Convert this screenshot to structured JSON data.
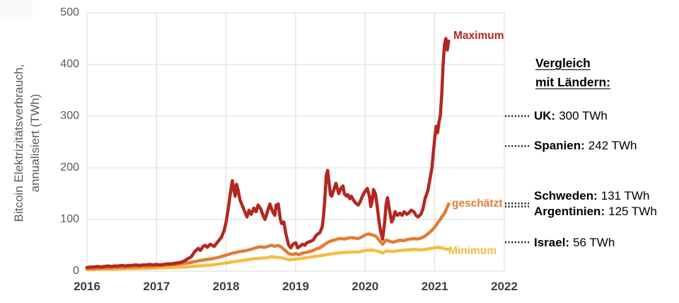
{
  "chart_data": {
    "type": "line",
    "title": "",
    "ylabel_lines": [
      "Bitcoin Elektrizitätsverbrauch,",
      "annualisiert (TWh)"
    ],
    "xlim": [
      2016,
      2022
    ],
    "ylim": [
      0,
      500
    ],
    "x_ticks": [
      2016,
      2017,
      2018,
      2019,
      2020,
      2021,
      2022
    ],
    "y_ticks": [
      0,
      100,
      200,
      300,
      400,
      500
    ],
    "grid": "both",
    "grid_color": "#d9d9d9",
    "axis_line_color": "#bfbfbf",
    "leader_color": "#1a1a1a",
    "series": [
      {
        "name": "Maximum",
        "color": "#b3271e",
        "points": [
          [
            2016.0,
            7
          ],
          [
            2016.05,
            8
          ],
          [
            2016.1,
            8
          ],
          [
            2016.15,
            9
          ],
          [
            2016.2,
            8
          ],
          [
            2016.25,
            9
          ],
          [
            2016.3,
            10
          ],
          [
            2016.35,
            9
          ],
          [
            2016.4,
            10
          ],
          [
            2016.45,
            10
          ],
          [
            2016.5,
            11
          ],
          [
            2016.55,
            10
          ],
          [
            2016.6,
            11
          ],
          [
            2016.65,
            11
          ],
          [
            2016.7,
            12
          ],
          [
            2016.75,
            11
          ],
          [
            2016.8,
            12
          ],
          [
            2016.85,
            12
          ],
          [
            2016.9,
            13
          ],
          [
            2016.95,
            12
          ],
          [
            2017.0,
            13
          ],
          [
            2017.05,
            12
          ],
          [
            2017.1,
            13
          ],
          [
            2017.15,
            14
          ],
          [
            2017.2,
            14
          ],
          [
            2017.25,
            15
          ],
          [
            2017.3,
            16
          ],
          [
            2017.35,
            17
          ],
          [
            2017.4,
            20
          ],
          [
            2017.45,
            24
          ],
          [
            2017.5,
            28
          ],
          [
            2017.55,
            38
          ],
          [
            2017.6,
            44
          ],
          [
            2017.63,
            40
          ],
          [
            2017.67,
            48
          ],
          [
            2017.7,
            50
          ],
          [
            2017.73,
            46
          ],
          [
            2017.77,
            52
          ],
          [
            2017.8,
            50
          ],
          [
            2017.83,
            48
          ],
          [
            2017.87,
            55
          ],
          [
            2017.9,
            60
          ],
          [
            2017.93,
            65
          ],
          [
            2017.97,
            78
          ],
          [
            2018.0,
            95
          ],
          [
            2018.03,
            120
          ],
          [
            2018.06,
            150
          ],
          [
            2018.09,
            175
          ],
          [
            2018.11,
            158
          ],
          [
            2018.13,
            145
          ],
          [
            2018.15,
            168
          ],
          [
            2018.17,
            158
          ],
          [
            2018.2,
            138
          ],
          [
            2018.23,
            128
          ],
          [
            2018.26,
            118
          ],
          [
            2018.3,
            105
          ],
          [
            2018.33,
            118
          ],
          [
            2018.36,
            110
          ],
          [
            2018.4,
            122
          ],
          [
            2018.43,
            115
          ],
          [
            2018.46,
            128
          ],
          [
            2018.5,
            120
          ],
          [
            2018.53,
            108
          ],
          [
            2018.56,
            100
          ],
          [
            2018.6,
            118
          ],
          [
            2018.63,
            130
          ],
          [
            2018.66,
            118
          ],
          [
            2018.7,
            108
          ],
          [
            2018.72,
            128
          ],
          [
            2018.75,
            130
          ],
          [
            2018.78,
            100
          ],
          [
            2018.8,
            92
          ],
          [
            2018.83,
            95
          ],
          [
            2018.86,
            72
          ],
          [
            2018.9,
            50
          ],
          [
            2018.93,
            45
          ],
          [
            2018.96,
            52
          ],
          [
            2019.0,
            55
          ],
          [
            2019.03,
            45
          ],
          [
            2019.06,
            48
          ],
          [
            2019.1,
            52
          ],
          [
            2019.13,
            50
          ],
          [
            2019.16,
            55
          ],
          [
            2019.2,
            57
          ],
          [
            2019.25,
            60
          ],
          [
            2019.3,
            70
          ],
          [
            2019.35,
            75
          ],
          [
            2019.38,
            85
          ],
          [
            2019.4,
            105
          ],
          [
            2019.42,
            140
          ],
          [
            2019.44,
            185
          ],
          [
            2019.46,
            195
          ],
          [
            2019.48,
            172
          ],
          [
            2019.5,
            148
          ],
          [
            2019.52,
            145
          ],
          [
            2019.55,
            158
          ],
          [
            2019.58,
            170
          ],
          [
            2019.6,
            160
          ],
          [
            2019.62,
            150
          ],
          [
            2019.65,
            160
          ],
          [
            2019.68,
            165
          ],
          [
            2019.7,
            150
          ],
          [
            2019.73,
            145
          ],
          [
            2019.75,
            148
          ],
          [
            2019.78,
            140
          ],
          [
            2019.8,
            145
          ],
          [
            2019.83,
            138
          ],
          [
            2019.86,
            132
          ],
          [
            2019.9,
            128
          ],
          [
            2019.93,
            135
          ],
          [
            2019.96,
            145
          ],
          [
            2020.0,
            155
          ],
          [
            2020.03,
            160
          ],
          [
            2020.06,
            145
          ],
          [
            2020.08,
            125
          ],
          [
            2020.1,
            135
          ],
          [
            2020.12,
            158
          ],
          [
            2020.15,
            148
          ],
          [
            2020.18,
            118
          ],
          [
            2020.2,
            95
          ],
          [
            2020.22,
            78
          ],
          [
            2020.25,
            62
          ],
          [
            2020.28,
            95
          ],
          [
            2020.3,
            128
          ],
          [
            2020.32,
            142
          ],
          [
            2020.35,
            118
          ],
          [
            2020.38,
            95
          ],
          [
            2020.4,
            100
          ],
          [
            2020.43,
            115
          ],
          [
            2020.46,
            108
          ],
          [
            2020.5,
            112
          ],
          [
            2020.53,
            108
          ],
          [
            2020.56,
            115
          ],
          [
            2020.6,
            110
          ],
          [
            2020.63,
            113
          ],
          [
            2020.66,
            118
          ],
          [
            2020.7,
            115
          ],
          [
            2020.73,
            108
          ],
          [
            2020.76,
            105
          ],
          [
            2020.8,
            110
          ],
          [
            2020.83,
            120
          ],
          [
            2020.86,
            140
          ],
          [
            2020.9,
            155
          ],
          [
            2020.92,
            170
          ],
          [
            2020.94,
            185
          ],
          [
            2020.96,
            200
          ],
          [
            2020.98,
            230
          ],
          [
            2021.0,
            258
          ],
          [
            2021.02,
            280
          ],
          [
            2021.04,
            268
          ],
          [
            2021.06,
            288
          ],
          [
            2021.08,
            300
          ],
          [
            2021.1,
            340
          ],
          [
            2021.12,
            400
          ],
          [
            2021.14,
            438
          ],
          [
            2021.16,
            450
          ],
          [
            2021.18,
            428
          ],
          [
            2021.2,
            445
          ]
        ]
      },
      {
        "name": "geschätzt",
        "color": "#e07d36",
        "points": [
          [
            2016.0,
            5
          ],
          [
            2016.1,
            5
          ],
          [
            2016.2,
            6
          ],
          [
            2016.3,
            6
          ],
          [
            2016.4,
            7
          ],
          [
            2016.5,
            7
          ],
          [
            2016.6,
            8
          ],
          [
            2016.7,
            8
          ],
          [
            2016.8,
            9
          ],
          [
            2016.9,
            9
          ],
          [
            2017.0,
            10
          ],
          [
            2017.1,
            11
          ],
          [
            2017.2,
            12
          ],
          [
            2017.3,
            13
          ],
          [
            2017.4,
            15
          ],
          [
            2017.5,
            17
          ],
          [
            2017.6,
            20
          ],
          [
            2017.7,
            22
          ],
          [
            2017.8,
            24
          ],
          [
            2017.9,
            27
          ],
          [
            2018.0,
            31
          ],
          [
            2018.1,
            35
          ],
          [
            2018.2,
            38
          ],
          [
            2018.3,
            40
          ],
          [
            2018.4,
            44
          ],
          [
            2018.45,
            46
          ],
          [
            2018.5,
            47
          ],
          [
            2018.55,
            46
          ],
          [
            2018.6,
            48
          ],
          [
            2018.65,
            50
          ],
          [
            2018.7,
            48
          ],
          [
            2018.75,
            50
          ],
          [
            2018.8,
            46
          ],
          [
            2018.85,
            40
          ],
          [
            2018.9,
            34
          ],
          [
            2018.95,
            32
          ],
          [
            2019.0,
            34
          ],
          [
            2019.05,
            32
          ],
          [
            2019.1,
            35
          ],
          [
            2019.15,
            36
          ],
          [
            2019.2,
            38
          ],
          [
            2019.25,
            40
          ],
          [
            2019.3,
            43
          ],
          [
            2019.35,
            45
          ],
          [
            2019.4,
            50
          ],
          [
            2019.45,
            55
          ],
          [
            2019.5,
            58
          ],
          [
            2019.55,
            60
          ],
          [
            2019.6,
            62
          ],
          [
            2019.65,
            63
          ],
          [
            2019.7,
            62
          ],
          [
            2019.75,
            64
          ],
          [
            2019.8,
            65
          ],
          [
            2019.85,
            64
          ],
          [
            2019.9,
            63
          ],
          [
            2019.95,
            66
          ],
          [
            2020.0,
            70
          ],
          [
            2020.05,
            72
          ],
          [
            2020.1,
            70
          ],
          [
            2020.15,
            68
          ],
          [
            2020.2,
            60
          ],
          [
            2020.25,
            52
          ],
          [
            2020.3,
            60
          ],
          [
            2020.35,
            58
          ],
          [
            2020.4,
            56
          ],
          [
            2020.45,
            58
          ],
          [
            2020.5,
            60
          ],
          [
            2020.55,
            59
          ],
          [
            2020.6,
            61
          ],
          [
            2020.65,
            62
          ],
          [
            2020.7,
            63
          ],
          [
            2020.75,
            62
          ],
          [
            2020.8,
            64
          ],
          [
            2020.85,
            67
          ],
          [
            2020.9,
            72
          ],
          [
            2020.95,
            78
          ],
          [
            2021.0,
            85
          ],
          [
            2021.05,
            95
          ],
          [
            2021.08,
            100
          ],
          [
            2021.1,
            105
          ],
          [
            2021.12,
            108
          ],
          [
            2021.14,
            112
          ],
          [
            2021.16,
            118
          ],
          [
            2021.18,
            124
          ],
          [
            2021.2,
            130
          ]
        ]
      },
      {
        "name": "Minimum",
        "color": "#f2bf44",
        "points": [
          [
            2016.0,
            3
          ],
          [
            2016.2,
            4
          ],
          [
            2016.4,
            4
          ],
          [
            2016.6,
            5
          ],
          [
            2016.8,
            5
          ],
          [
            2017.0,
            6
          ],
          [
            2017.2,
            7
          ],
          [
            2017.4,
            8
          ],
          [
            2017.6,
            10
          ],
          [
            2017.8,
            12
          ],
          [
            2017.9,
            14
          ],
          [
            2018.0,
            16
          ],
          [
            2018.1,
            18
          ],
          [
            2018.2,
            20
          ],
          [
            2018.3,
            22
          ],
          [
            2018.4,
            24
          ],
          [
            2018.5,
            25
          ],
          [
            2018.6,
            26
          ],
          [
            2018.65,
            28
          ],
          [
            2018.7,
            27
          ],
          [
            2018.8,
            26
          ],
          [
            2018.9,
            22
          ],
          [
            2019.0,
            23
          ],
          [
            2019.1,
            25
          ],
          [
            2019.2,
            27
          ],
          [
            2019.3,
            29
          ],
          [
            2019.4,
            31
          ],
          [
            2019.5,
            33
          ],
          [
            2019.6,
            35
          ],
          [
            2019.7,
            36
          ],
          [
            2019.8,
            37
          ],
          [
            2019.9,
            37
          ],
          [
            2020.0,
            40
          ],
          [
            2020.1,
            41
          ],
          [
            2020.2,
            38
          ],
          [
            2020.25,
            35
          ],
          [
            2020.3,
            39
          ],
          [
            2020.4,
            38
          ],
          [
            2020.5,
            40
          ],
          [
            2020.6,
            41
          ],
          [
            2020.7,
            42
          ],
          [
            2020.8,
            41
          ],
          [
            2020.9,
            43
          ],
          [
            2021.0,
            45
          ],
          [
            2021.05,
            46
          ],
          [
            2021.1,
            45
          ],
          [
            2021.15,
            43
          ],
          [
            2021.2,
            42
          ]
        ]
      }
    ],
    "comparisons": [
      {
        "name": "UK:",
        "value": "300 TWh",
        "twh": 300
      },
      {
        "name": "Spanien:",
        "value": "242 TWh",
        "twh": 242
      },
      {
        "name": "Schweden:",
        "value": "131 TWh",
        "twh": 131
      },
      {
        "name": "Argentinien:",
        "value": "125 TWh",
        "twh": 125
      },
      {
        "name": "Israel:",
        "value": "56 TWh",
        "twh": 56
      }
    ]
  },
  "panel": {
    "title_line1": "Vergleich",
    "title_line2": "mit Ländern:"
  }
}
